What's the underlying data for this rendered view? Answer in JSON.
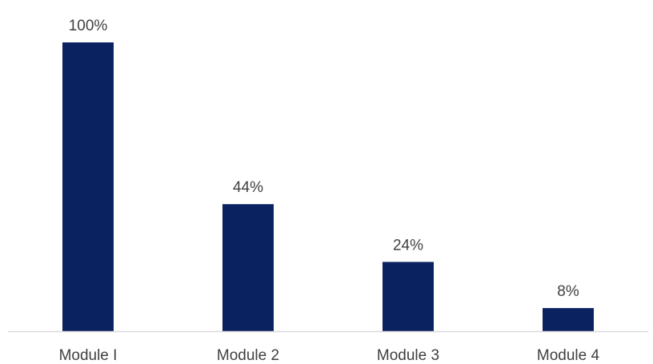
{
  "chart_data": {
    "type": "bar",
    "categories": [
      "Module I",
      "Module 2",
      "Module 3",
      "Module 4"
    ],
    "values": [
      100,
      44,
      24,
      8
    ],
    "data_labels": [
      "100%",
      "44%",
      "24%",
      "8%"
    ],
    "title": "",
    "xlabel": "",
    "ylabel": "",
    "ylim": [
      0,
      100
    ],
    "grid": false,
    "legend": "none",
    "colors": {
      "bar": "#0B2261",
      "axis": "#D9D9D9",
      "text": "#404040"
    }
  }
}
